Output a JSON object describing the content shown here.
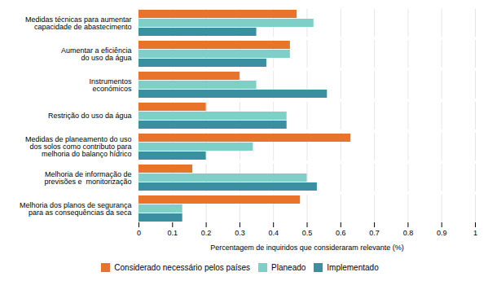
{
  "chart_data": {
    "type": "bar",
    "orientation": "horizontal",
    "categories": [
      "Medidas técnicas para aumentar\ncapacidade de abastecimento",
      "Aumentar a eficiência\ndo uso da água",
      "Instrumentos\neconómicos",
      "Restrição do uso da água",
      "Medidas de planeamento do uso\ndos solos como contributo para\nmelhoria do balanço hídrico",
      "Melhoria de informação de\nprevisões e  monitorização",
      "Melhoria dos planos de segurança\npara as consequências da seca"
    ],
    "series": [
      {
        "name": "Considerado necessário pelos países",
        "color": "#E8732A",
        "values": [
          0.47,
          0.45,
          0.3,
          0.2,
          0.63,
          0.16,
          0.48
        ]
      },
      {
        "name": "Planeado",
        "color": "#7ECFC7",
        "values": [
          0.52,
          0.45,
          0.35,
          0.44,
          0.34,
          0.5,
          0.13
        ]
      },
      {
        "name": "Implementado",
        "color": "#3A8FA0",
        "values": [
          0.35,
          0.38,
          0.56,
          0.44,
          0.2,
          0.53,
          0.13
        ]
      }
    ],
    "xlabel": "Percentagem de inquiridos que consideraram relevante (%)",
    "xlim": [
      0,
      1.0
    ],
    "xticks": [
      0,
      0.1,
      0.2,
      0.3,
      0.4,
      0.5,
      0.6,
      0.7,
      0.8,
      0.9,
      1
    ],
    "grid": true,
    "legend": "bottom"
  }
}
